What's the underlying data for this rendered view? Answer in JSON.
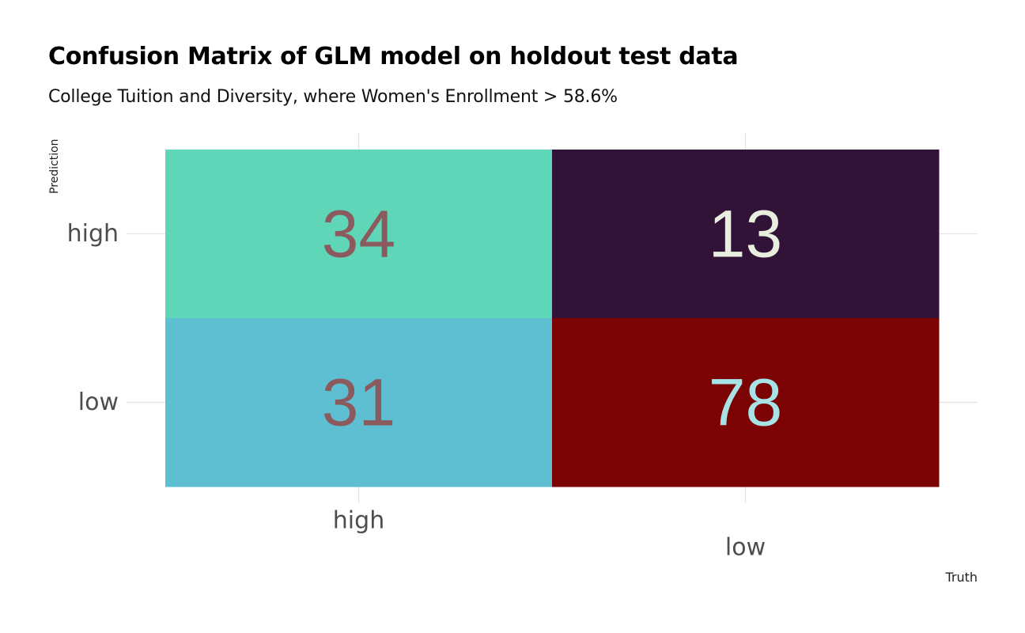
{
  "chart_data": {
    "type": "heatmap",
    "title": "Confusion Matrix of GLM model on holdout test data",
    "subtitle": "College Tuition and Diversity, where Women's Enrollment > 58.6%",
    "xlabel": "Truth",
    "ylabel": "Prediction",
    "x_categories": [
      "high",
      "low"
    ],
    "y_categories": [
      "high",
      "low"
    ],
    "cells": [
      {
        "truth": "high",
        "prediction": "high",
        "value": 34,
        "fill": "#5fd6b8",
        "text_color": "#8b5a5f"
      },
      {
        "truth": "low",
        "prediction": "high",
        "value": 13,
        "fill": "#311338",
        "text_color": "#e8efdf"
      },
      {
        "truth": "high",
        "prediction": "low",
        "value": 31,
        "fill": "#5ebfd3",
        "text_color": "#8b5a5f"
      },
      {
        "truth": "low",
        "prediction": "low",
        "value": 78,
        "fill": "#7b0303",
        "text_color": "#a7e3e6"
      }
    ],
    "grid": true,
    "legend": "none"
  },
  "colors": {
    "grid": "#e3e3e3",
    "axis_text": "#4d4d4d",
    "axis_title": "#222222"
  }
}
